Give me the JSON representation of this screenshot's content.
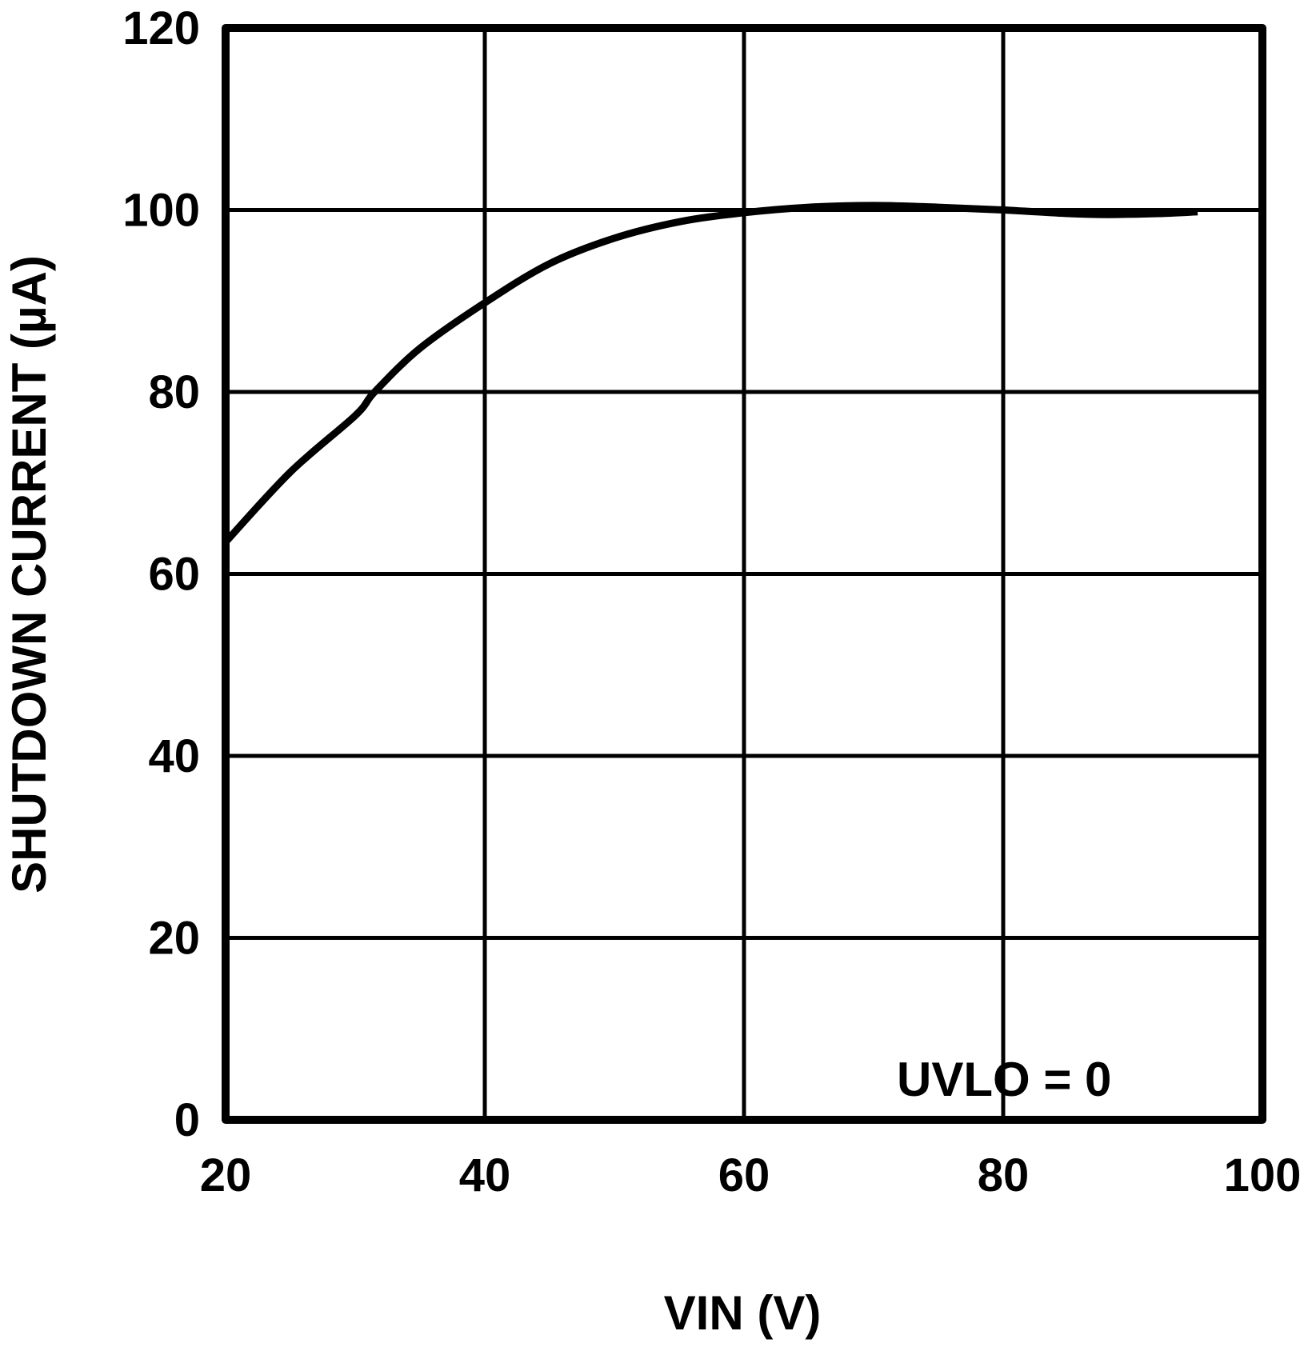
{
  "chart_data": {
    "type": "line",
    "title": "",
    "xlabel": "VIN (V)",
    "ylabel": "SHUTDOWN CURRENT (µA)",
    "xlim": [
      20,
      100
    ],
    "ylim": [
      0,
      120
    ],
    "xticks": [
      20,
      40,
      60,
      80,
      100
    ],
    "yticks": [
      0,
      20,
      40,
      60,
      80,
      100,
      120
    ],
    "grid": true,
    "legend": null,
    "annotations": [
      {
        "text": "UVLO = 0",
        "x": 80.5,
        "y": 5
      }
    ],
    "series": [
      {
        "name": "UVLO = 0",
        "color": "#000000",
        "x": [
          20,
          25,
          30,
          31.5,
          35,
          40,
          45,
          50,
          55,
          60,
          65,
          70,
          75,
          80,
          85,
          88,
          92,
          95
        ],
        "y": [
          63.5,
          71.2,
          77.4,
          80.0,
          84.8,
          89.8,
          94.1,
          96.9,
          98.7,
          99.7,
          100.3,
          100.5,
          100.3,
          100.0,
          99.6,
          99.5,
          99.6,
          99.8
        ]
      }
    ]
  },
  "colors": {
    "background": "#ffffff",
    "line": "#000000",
    "grid": "#000000",
    "frame": "#000000"
  }
}
